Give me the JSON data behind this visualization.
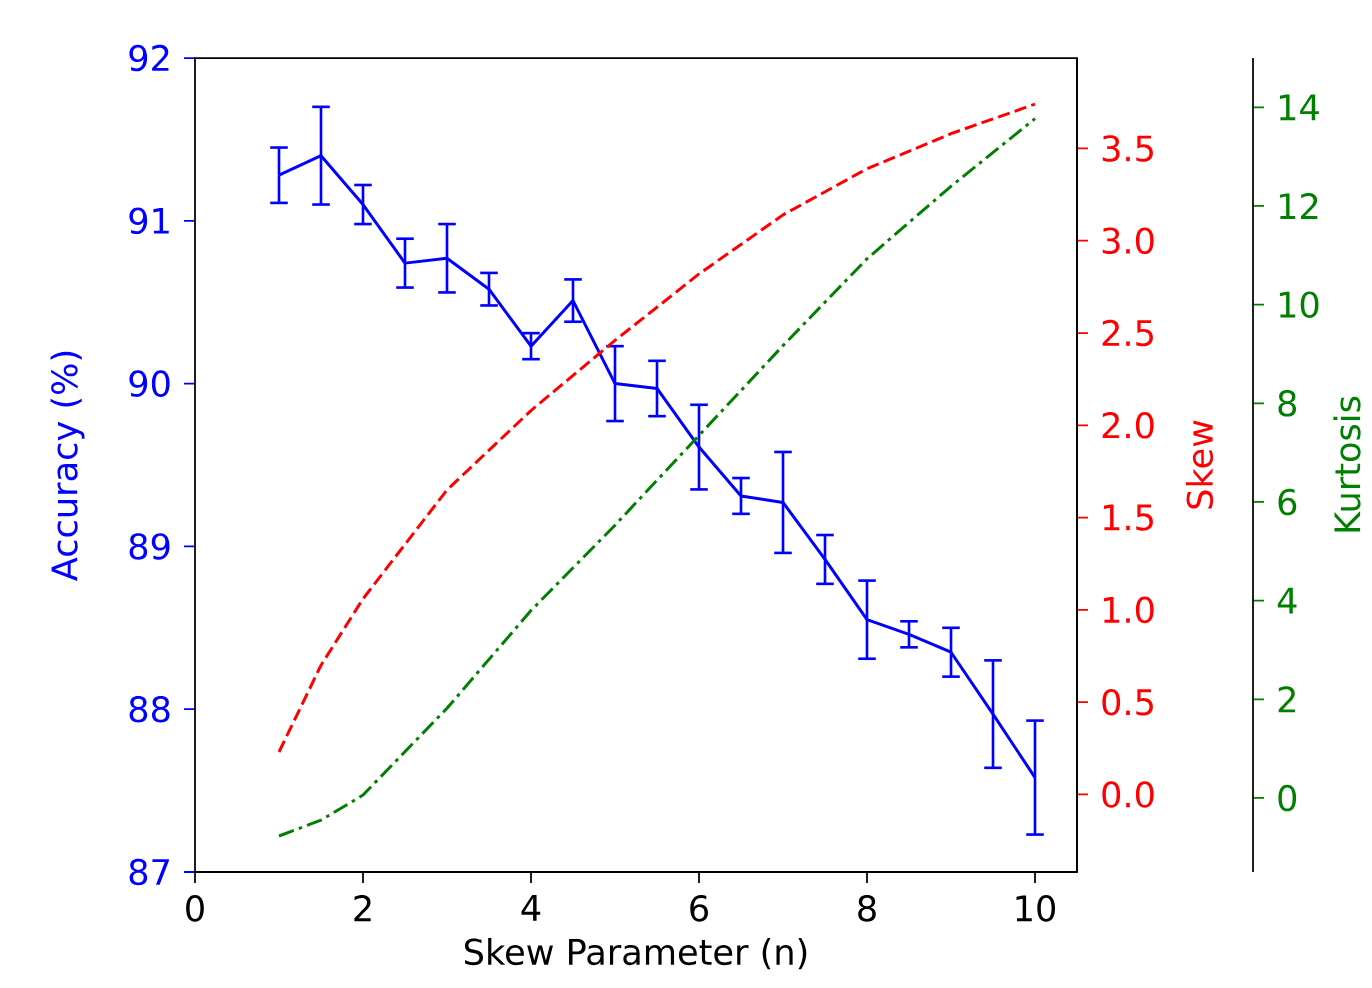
{
  "chart_data": {
    "type": "line",
    "xlabel": "Skew Parameter (n)",
    "ylabel": "Accuracy (%)",
    "y2label": "Skew",
    "y3label": "Kurtosis",
    "x": [
      1,
      1.5,
      2,
      2.5,
      3,
      3.5,
      4,
      4.5,
      5,
      5.5,
      6,
      6.5,
      7,
      7.5,
      8,
      8.5,
      9,
      9.5,
      10
    ],
    "xlim": [
      0,
      10.5
    ],
    "xticks": [
      0,
      2,
      4,
      6,
      8,
      10
    ],
    "ylim": [
      87,
      92
    ],
    "yticks": [
      87,
      88,
      89,
      90,
      91,
      92
    ],
    "y2lim": [
      -0.42,
      3.99
    ],
    "y2ticks": [
      {
        "value": 0,
        "label": "0.0"
      },
      {
        "value": 0.5,
        "label": "0.5"
      },
      {
        "value": 1,
        "label": "1.0"
      },
      {
        "value": 1.5,
        "label": "1.5"
      },
      {
        "value": 2,
        "label": "2.0"
      },
      {
        "value": 2.5,
        "label": "2.5"
      },
      {
        "value": 3,
        "label": "3.0"
      },
      {
        "value": 3.5,
        "label": "3.5"
      }
    ],
    "y3lim": [
      -1.5,
      15
    ],
    "y3ticks": [
      0,
      2,
      4,
      6,
      8,
      10,
      12,
      14
    ],
    "marker": "none",
    "grid": false,
    "series": [
      {
        "color": "#0000ff",
        "axis": "y",
        "line_style": "solid",
        "values": [
          91.28,
          91.4,
          91.1,
          90.74,
          90.77,
          90.58,
          90.23,
          90.51,
          90.0,
          89.97,
          89.61,
          89.31,
          89.27,
          88.92,
          88.55,
          88.46,
          88.35,
          87.97,
          87.58
        ],
        "errors": [
          0.17,
          0.3,
          0.12,
          0.15,
          0.21,
          0.1,
          0.08,
          0.13,
          0.23,
          0.17,
          0.26,
          0.11,
          0.31,
          0.15,
          0.24,
          0.08,
          0.15,
          0.33,
          0.35
        ]
      },
      {
        "color": "#ff0000",
        "axis": "y2",
        "line_style": "dashed",
        "x": [
          1,
          1.5,
          2,
          3,
          4,
          5,
          6,
          7,
          8,
          9,
          10
        ],
        "values": [
          0.23,
          0.7,
          1.06,
          1.65,
          2.08,
          2.46,
          2.82,
          3.14,
          3.39,
          3.58,
          3.74
        ]
      },
      {
        "color": "#008000",
        "axis": "y3",
        "line_style": "dashdot",
        "x": [
          1,
          1.5,
          2,
          3,
          4,
          5,
          6,
          7,
          8,
          9,
          10
        ],
        "values": [
          -0.77,
          -0.45,
          0.06,
          1.82,
          3.8,
          5.53,
          7.35,
          9.17,
          10.93,
          12.4,
          13.77
        ]
      }
    ]
  }
}
